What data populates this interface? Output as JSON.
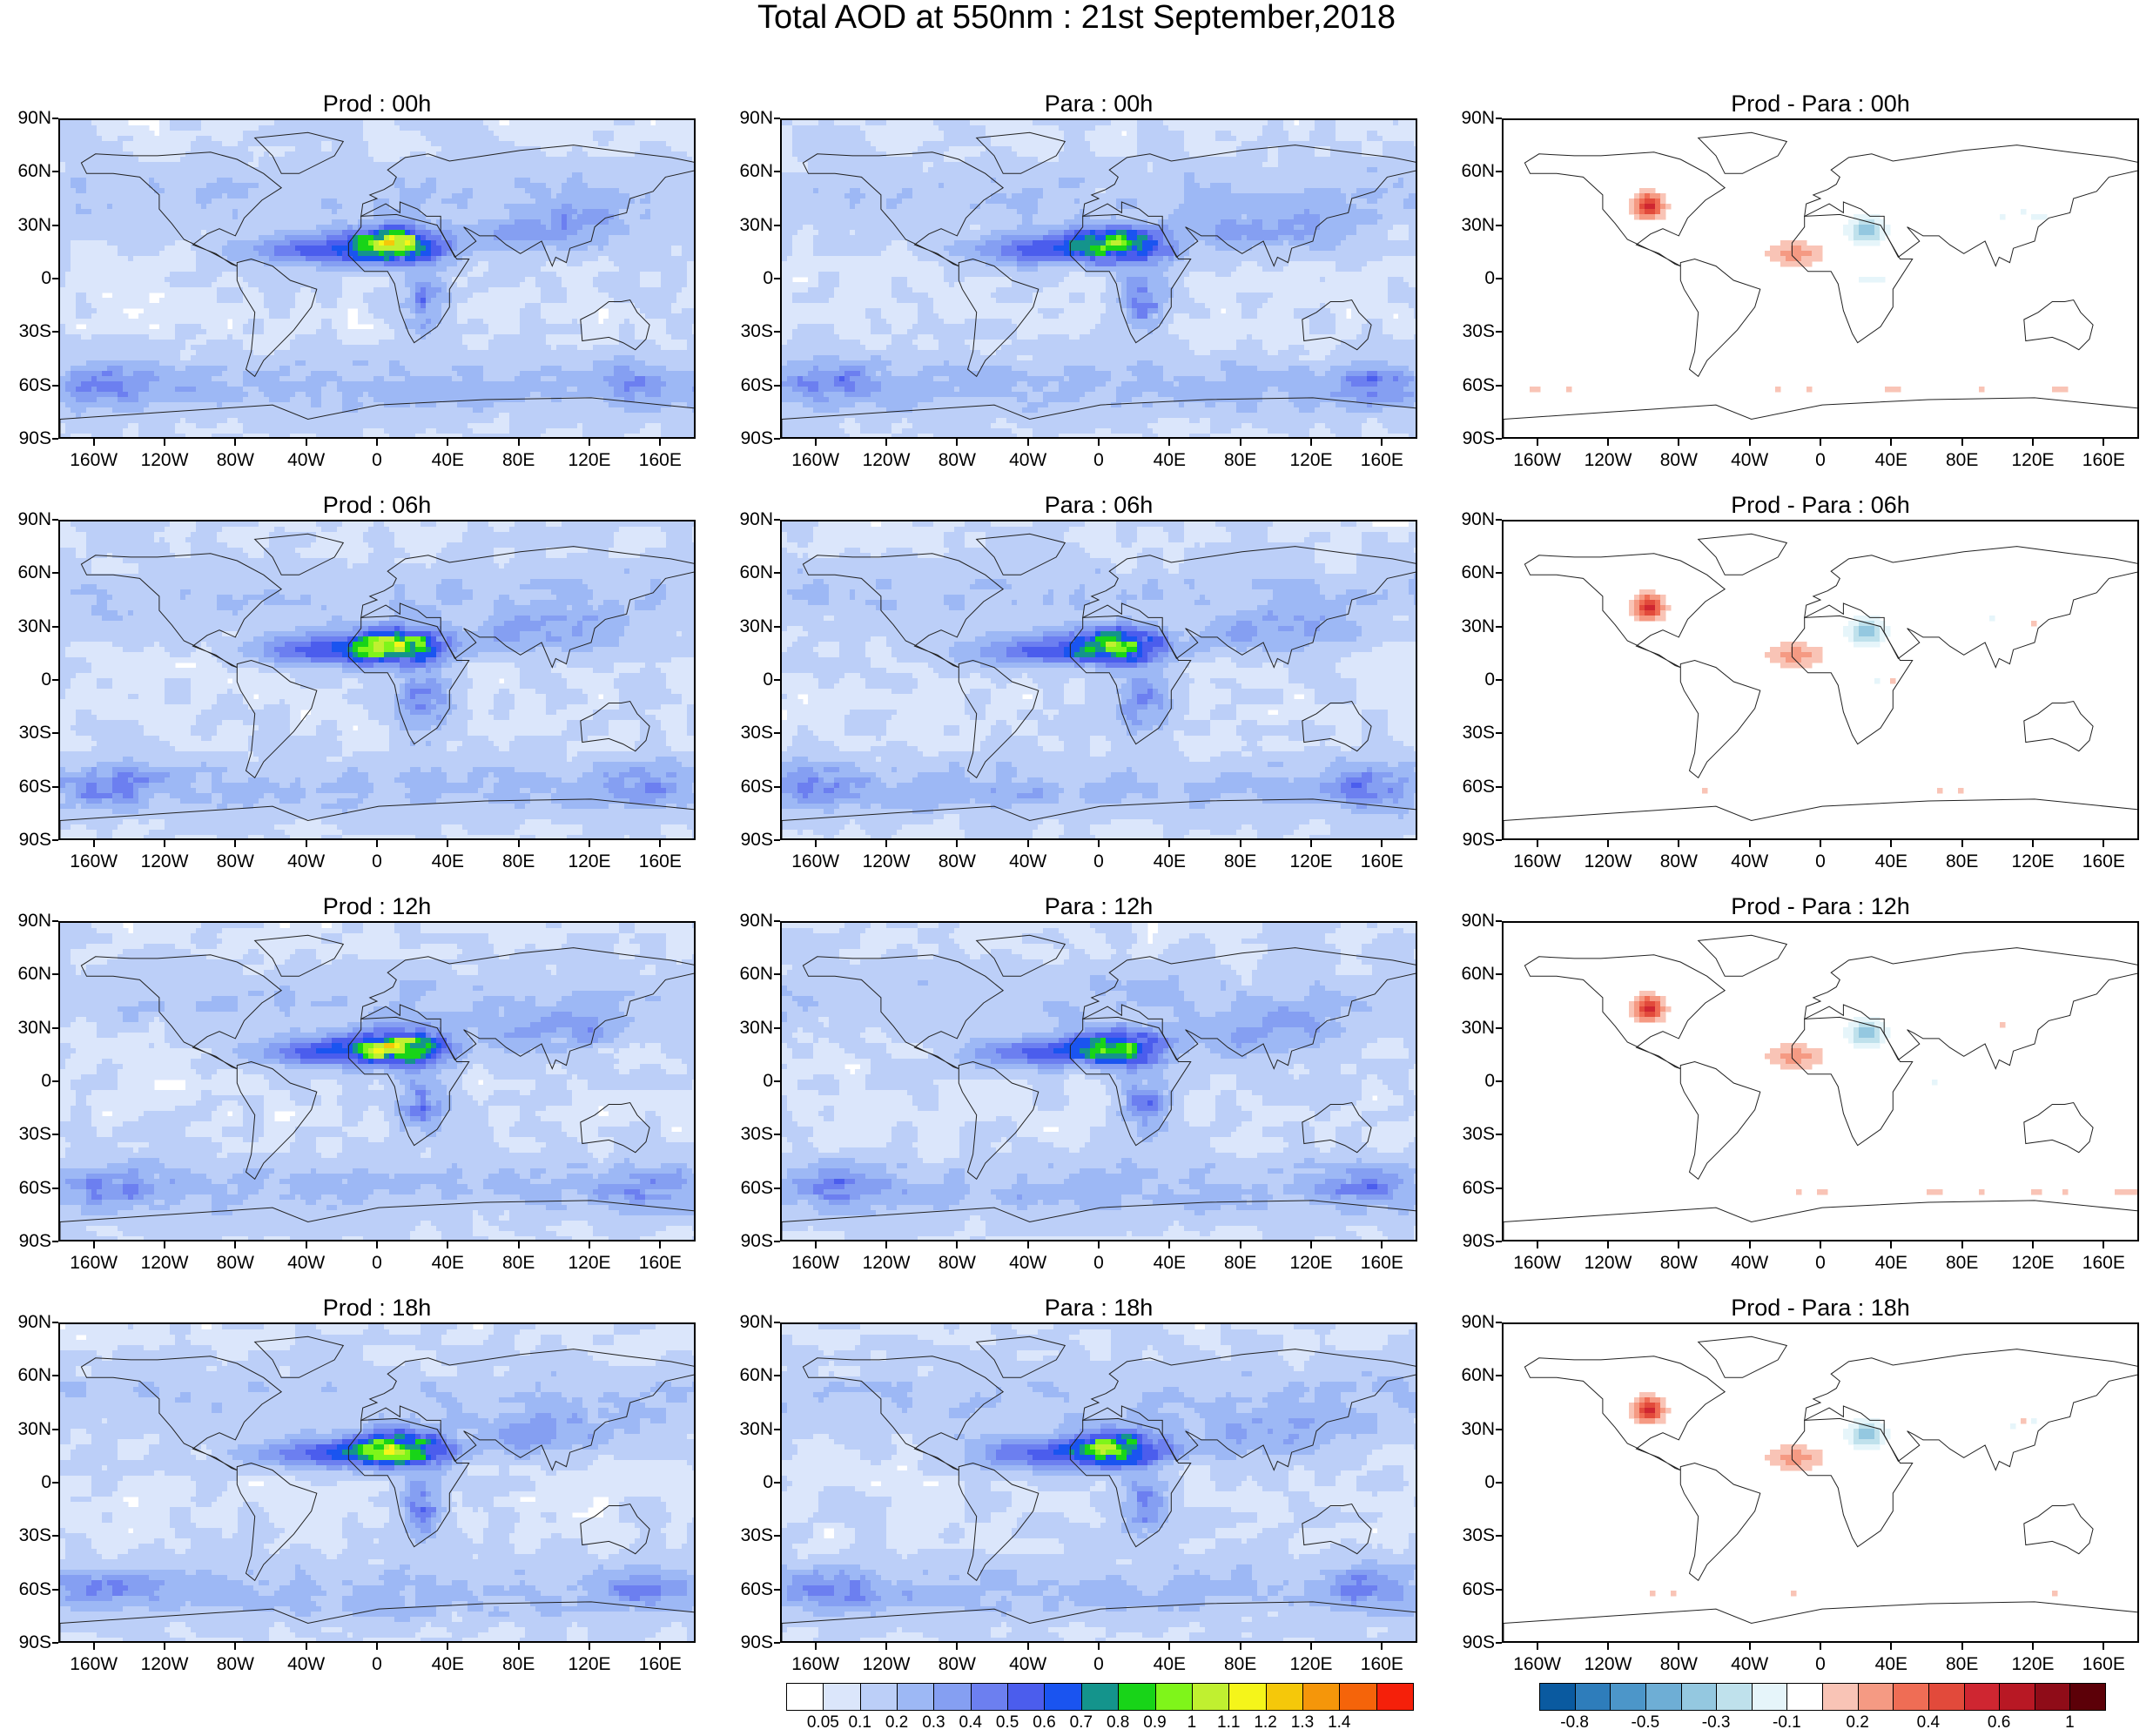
{
  "title": "Total AOD at 550nm : 21st September,2018",
  "lat_labels": [
    "90N",
    "60N",
    "30N",
    "0",
    "30S",
    "60S",
    "90S"
  ],
  "lon_labels": [
    "160W",
    "120W",
    "80W",
    "40W",
    "0",
    "40E",
    "80E",
    "120E",
    "160E"
  ],
  "panels": [
    {
      "title": "Prod : 00h",
      "kind": "aod",
      "source": "prod",
      "hour": 0
    },
    {
      "title": "Para : 00h",
      "kind": "aod",
      "source": "para",
      "hour": 0
    },
    {
      "title": "Prod - Para : 00h",
      "kind": "diff",
      "hour": 0
    },
    {
      "title": "Prod : 06h",
      "kind": "aod",
      "source": "prod",
      "hour": 6
    },
    {
      "title": "Para : 06h",
      "kind": "aod",
      "source": "para",
      "hour": 6
    },
    {
      "title": "Prod - Para : 06h",
      "kind": "diff",
      "hour": 6
    },
    {
      "title": "Prod : 12h",
      "kind": "aod",
      "source": "prod",
      "hour": 12
    },
    {
      "title": "Para : 12h",
      "kind": "aod",
      "source": "para",
      "hour": 12
    },
    {
      "title": "Prod - Para : 12h",
      "kind": "diff",
      "hour": 12
    },
    {
      "title": "Prod : 18h",
      "kind": "aod",
      "source": "prod",
      "hour": 18
    },
    {
      "title": "Para : 18h",
      "kind": "aod",
      "source": "para",
      "hour": 18
    },
    {
      "title": "Prod - Para : 18h",
      "kind": "diff",
      "hour": 18
    }
  ],
  "aod_colorbar": {
    "labels": [
      "0.05",
      "0.1",
      "0.2",
      "0.3",
      "0.4",
      "0.5",
      "0.6",
      "0.7",
      "0.8",
      "0.9",
      "1",
      "1.1",
      "1.2",
      "1.3",
      "1.4"
    ],
    "colors": [
      "#ffffff",
      "#dbe6fb",
      "#bccff8",
      "#9db8f5",
      "#859ff2",
      "#6c7ff0",
      "#4b5ded",
      "#1a54f0",
      "#14948c",
      "#18d418",
      "#7ff51a",
      "#c0f030",
      "#f5f51a",
      "#f5c80a",
      "#f5960a",
      "#f5640a",
      "#f5200a"
    ]
  },
  "diff_colorbar": {
    "labels": [
      "-0.8",
      "-0.5",
      "-0.3",
      "-0.1",
      "0.2",
      "0.4",
      "0.6",
      "1"
    ],
    "label_cells": [
      1,
      3,
      5,
      7,
      9,
      11,
      13,
      15
    ],
    "colors": [
      "#0a5aa0",
      "#2e7dbb",
      "#4c96c9",
      "#6eaed5",
      "#94c8e0",
      "#bfe1ec",
      "#e6f5fa",
      "#ffffff",
      "#f9c4b6",
      "#f59a83",
      "#ef6d55",
      "#e24a3b",
      "#cf2631",
      "#b81824",
      "#8f0c18",
      "#5c0008"
    ]
  },
  "chart_data": {
    "type": "heatmap",
    "variable": "Total AOD at 550nm",
    "date": "21st September,2018",
    "hours": [
      "00h",
      "06h",
      "12h",
      "18h"
    ],
    "columns": [
      "Prod",
      "Para",
      "Prod - Para"
    ],
    "lat_range": [
      -90,
      90
    ],
    "lon_range": [
      -180,
      180
    ],
    "aod_levels": [
      0.05,
      0.1,
      0.2,
      0.3,
      0.4,
      0.5,
      0.6,
      0.7,
      0.8,
      0.9,
      1,
      1.1,
      1.2,
      1.3,
      1.4
    ],
    "diff_levels": [
      -0.8,
      -0.5,
      -0.3,
      -0.1,
      0.2,
      0.4,
      0.6,
      1
    ]
  }
}
